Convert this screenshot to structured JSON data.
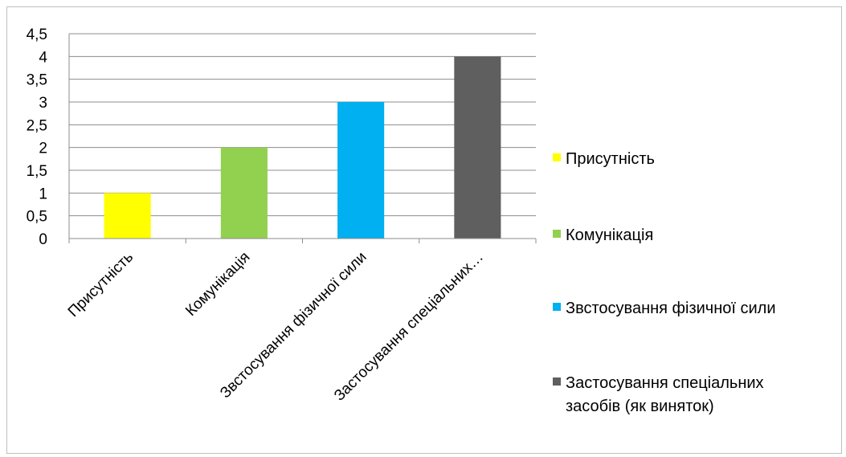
{
  "chart_data": {
    "type": "bar",
    "categories": [
      "Присутність",
      "Комунікація",
      "Звстосування фізичної сили",
      "Застосування спеціальних засобів (як виняток)"
    ],
    "category_tick_labels": [
      "Присутність",
      "Комунікація",
      "Звстосування фізичної сили",
      "Застосування спеціальних…"
    ],
    "values": [
      1,
      2,
      3,
      4
    ],
    "colors": [
      "#ffff00",
      "#92d050",
      "#00b0f0",
      "#5f5f5f"
    ],
    "ylim": [
      0,
      4.5
    ],
    "yticks": [
      "0",
      "0,5",
      "1",
      "1,5",
      "2",
      "2,5",
      "3",
      "3,5",
      "4",
      "4,5"
    ],
    "grid": true,
    "legend_position": "right",
    "legend": [
      {
        "label": "Присутність",
        "color": "#ffff00"
      },
      {
        "label": "Комунікація",
        "color": "#92d050"
      },
      {
        "label": "Звстосування фізичної сили",
        "color": "#00b0f0"
      },
      {
        "label": "Застосування спеціальних засобів (як виняток)",
        "color": "#5f5f5f"
      }
    ]
  }
}
